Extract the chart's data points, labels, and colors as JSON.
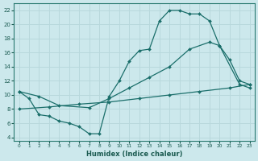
{
  "xlabel": "Humidex (Indice chaleur)",
  "bg_color": "#cce8ec",
  "grid_color": "#b8d8dc",
  "line_color": "#1a6e6a",
  "xlim": [
    -0.5,
    23.5
  ],
  "ylim": [
    3.5,
    23.0
  ],
  "xticks": [
    0,
    1,
    2,
    3,
    4,
    5,
    6,
    7,
    8,
    9,
    10,
    11,
    12,
    13,
    14,
    15,
    16,
    17,
    18,
    19,
    20,
    21,
    22,
    23
  ],
  "yticks": [
    4,
    6,
    8,
    10,
    12,
    14,
    16,
    18,
    20,
    22
  ],
  "line1_x": [
    0,
    1,
    2,
    3,
    4,
    5,
    6,
    7,
    8,
    9,
    10,
    11,
    12,
    13,
    14,
    15,
    16,
    17,
    18,
    19,
    20,
    21,
    22,
    23
  ],
  "line1_y": [
    10.5,
    9.5,
    7.2,
    7.0,
    6.3,
    6.0,
    5.5,
    4.5,
    4.5,
    9.8,
    12.0,
    14.8,
    16.3,
    16.5,
    20.5,
    22.0,
    22.0,
    21.5,
    21.5,
    20.5,
    17.0,
    15.0,
    12.0,
    11.5
  ],
  "line2_x": [
    0,
    2,
    4,
    7,
    9,
    11,
    13,
    15,
    17,
    19,
    20,
    22,
    23
  ],
  "line2_y": [
    10.5,
    9.8,
    8.5,
    8.2,
    9.5,
    11.0,
    12.5,
    14.0,
    16.5,
    17.5,
    17.0,
    11.5,
    11.0
  ],
  "line3_x": [
    0,
    3,
    6,
    9,
    12,
    15,
    18,
    21,
    23
  ],
  "line3_y": [
    8.0,
    8.3,
    8.7,
    9.0,
    9.5,
    10.0,
    10.5,
    11.0,
    11.5
  ]
}
